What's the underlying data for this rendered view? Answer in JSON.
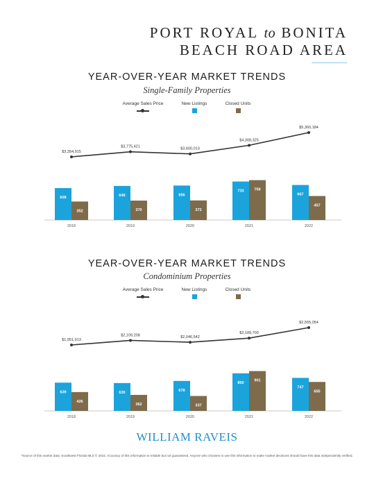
{
  "header": {
    "title_line1_a": "PORT ROYAL",
    "title_line1_to": "to",
    "title_line1_b": "BONITA",
    "title_line2": "BEACH ROAD AREA"
  },
  "sections": [
    {
      "heading": "YEAR-OVER-YEAR MARKET TRENDS",
      "subheading": "Single-Family Properties"
    },
    {
      "heading": "YEAR-OVER-YEAR MARKET TRENDS",
      "subheading": "Condominium Properties"
    }
  ],
  "legend": {
    "avg_price": "Average Sales Price",
    "new_listings": "New Listings",
    "closed_units": "Closed Units"
  },
  "colors": {
    "new_listings": "#1ba3dc",
    "closed_units": "#7d6b4c",
    "line": "#333333",
    "axis": "#c9c9c9"
  },
  "chart_data": [
    {
      "type": "bar",
      "categories": [
        "2018",
        "2019",
        "2020",
        "2021",
        "2022"
      ],
      "series": [
        {
          "name": "New Listings",
          "values": [
            608,
            649,
            656,
            733,
            667
          ]
        },
        {
          "name": "Closed Units",
          "values": [
            352,
            370,
            373,
            759,
            457
          ]
        }
      ],
      "line_series": {
        "name": "Average Sales Price",
        "values": [
          3354915,
          3775421,
          3600013,
          4308325,
          5360184
        ],
        "labels": [
          "$3,354,915",
          "$3,775,421",
          "$3,600,013",
          "$4,308,325",
          "$5,360,184"
        ]
      },
      "legend_position": "top"
    },
    {
      "type": "bar",
      "categories": [
        "2018",
        "2019",
        "2020",
        "2021",
        "2022"
      ],
      "series": [
        {
          "name": "New Listings",
          "values": [
            639,
            630,
            678,
            850,
            747
          ]
        },
        {
          "name": "Closed Units",
          "values": [
            426,
            362,
            337,
            901,
            655
          ]
        }
      ],
      "line_series": {
        "name": "Average Sales Price",
        "values": [
          1951913,
          2109208,
          2046542,
          2189700,
          2555054
        ],
        "labels": [
          "$1,951,913",
          "$2,109,208",
          "$2,046,542",
          "$2,189,700",
          "$2,555,054"
        ]
      },
      "legend_position": "top"
    }
  ],
  "footer": {
    "brand": "WILLIAM RAVEIS",
    "footnote": "*Source of this market data: Southwest Florida MLS © 2022. Accuracy of this information is reliable but not guaranteed. Anyone who chooses to use this information to make market decisions should have this data independently verified."
  }
}
